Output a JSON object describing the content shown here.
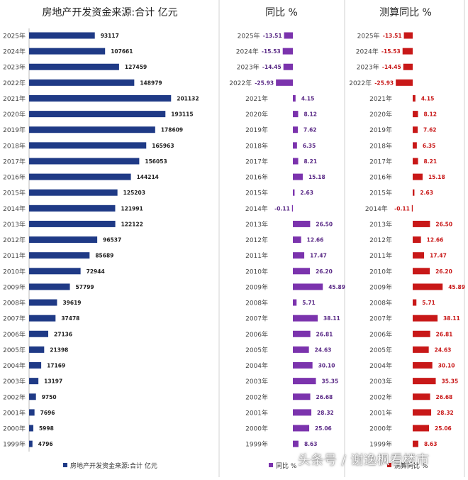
{
  "colors": {
    "funding": "#1f3a86",
    "yoy": "#7b33ad",
    "calc": "#c81818",
    "yoy_label": "#5a2a86",
    "calc_label": "#c81818",
    "divider": "#d0d0d0"
  },
  "watermark": "头条号 / 谢逸枫看楼市",
  "chart_data": [
    {
      "type": "bar",
      "orientation": "horizontal",
      "title": "房地产开发资金来源:合计 亿元",
      "legend": "房地产开发资金来源:合计 亿元",
      "legend_position": "bottom",
      "categories": [
        "2025年",
        "2024年",
        "2023年",
        "2022年",
        "2021年",
        "2020年",
        "2019年",
        "2018年",
        "2017年",
        "2016年",
        "2015年",
        "2014年",
        "2013年",
        "2012年",
        "2011年",
        "2010年",
        "2009年",
        "2008年",
        "2007年",
        "2006年",
        "2005年",
        "2004年",
        "2003年",
        "2002年",
        "2001年",
        "2000年",
        "1999年"
      ],
      "values": [
        93117,
        107661,
        127459,
        148979,
        201132,
        193115,
        178609,
        165963,
        156053,
        144214,
        125203,
        121991,
        122122,
        96537,
        85689,
        72944,
        57799,
        39619,
        37478,
        27136,
        21398,
        17169,
        13197,
        9750,
        7696,
        5998,
        4796
      ],
      "labels": [
        "93117",
        "107661",
        "127459",
        "148979",
        "201132",
        "193115",
        "178609",
        "165963",
        "156053",
        "144214",
        "125203",
        "121991",
        "122122",
        "96537",
        "85689",
        "72944",
        "57799",
        "39619",
        "37478",
        "27136",
        "21398",
        "17169",
        "13197",
        "9750",
        "7696",
        "5998",
        "4796"
      ],
      "xlim": [
        0,
        230000
      ]
    },
    {
      "type": "bar",
      "orientation": "horizontal",
      "title": "同比 %",
      "legend": "同比 %",
      "legend_position": "bottom",
      "categories": [
        "2025年",
        "2024年",
        "2023年",
        "2022年",
        "2021年",
        "2020年",
        "2019年",
        "2018年",
        "2017年",
        "2016年",
        "2015年",
        "2014年",
        "2013年",
        "2012年",
        "2011年",
        "2010年",
        "2009年",
        "2008年",
        "2007年",
        "2006年",
        "2005年",
        "2004年",
        "2003年",
        "2002年",
        "2001年",
        "2000年",
        "1999年"
      ],
      "values": [
        -13.51,
        -15.53,
        -14.45,
        -25.93,
        4.15,
        8.12,
        7.62,
        6.35,
        8.21,
        15.18,
        2.63,
        -0.11,
        26.5,
        12.66,
        17.47,
        26.2,
        45.89,
        5.71,
        38.11,
        26.81,
        24.63,
        30.1,
        35.35,
        26.68,
        28.32,
        25.06,
        8.63
      ],
      "labels": [
        "-13.51",
        "-15.53",
        "-14.45",
        "-25.93",
        "4.15",
        "8.12",
        "7.62",
        "6.35",
        "8.21",
        "15.18",
        "2.63",
        "-0.11",
        "26.50",
        "12.66",
        "17.47",
        "26.20",
        "45.89",
        "5.71",
        "38.11",
        "26.81",
        "24.63",
        "30.10",
        "35.35",
        "26.68",
        "28.32",
        "25.06",
        "8.63"
      ]
    },
    {
      "type": "bar",
      "orientation": "horizontal",
      "title": "测算同比 %",
      "legend": "测算同比 %",
      "legend_position": "bottom",
      "categories": [
        "2025年",
        "2024年",
        "2023年",
        "2022年",
        "2021年",
        "2020年",
        "2019年",
        "2018年",
        "2017年",
        "2016年",
        "2015年",
        "2014年",
        "2013年",
        "2012年",
        "2011年",
        "2010年",
        "2009年",
        "2008年",
        "2007年",
        "2006年",
        "2005年",
        "2004年",
        "2003年",
        "2002年",
        "2001年",
        "2000年",
        "1999年"
      ],
      "values": [
        -13.51,
        -15.53,
        -14.45,
        -25.93,
        4.15,
        8.12,
        7.62,
        6.35,
        8.21,
        15.18,
        2.63,
        -0.11,
        26.5,
        12.66,
        17.47,
        26.2,
        45.89,
        5.71,
        38.11,
        26.81,
        24.63,
        30.1,
        35.35,
        26.68,
        28.32,
        25.06,
        8.63
      ],
      "labels": [
        "-13.51",
        "-15.53",
        "-14.45",
        "-25.93",
        "4.15",
        "8.12",
        "7.62",
        "6.35",
        "8.21",
        "15.18",
        "2.63",
        "-0.11",
        "26.50",
        "12.66",
        "17.47",
        "26.20",
        "45.89",
        "5.71",
        "38.11",
        "26.81",
        "24.63",
        "30.10",
        "35.35",
        "26.68",
        "28.32",
        "25.06",
        "8.63"
      ]
    }
  ]
}
